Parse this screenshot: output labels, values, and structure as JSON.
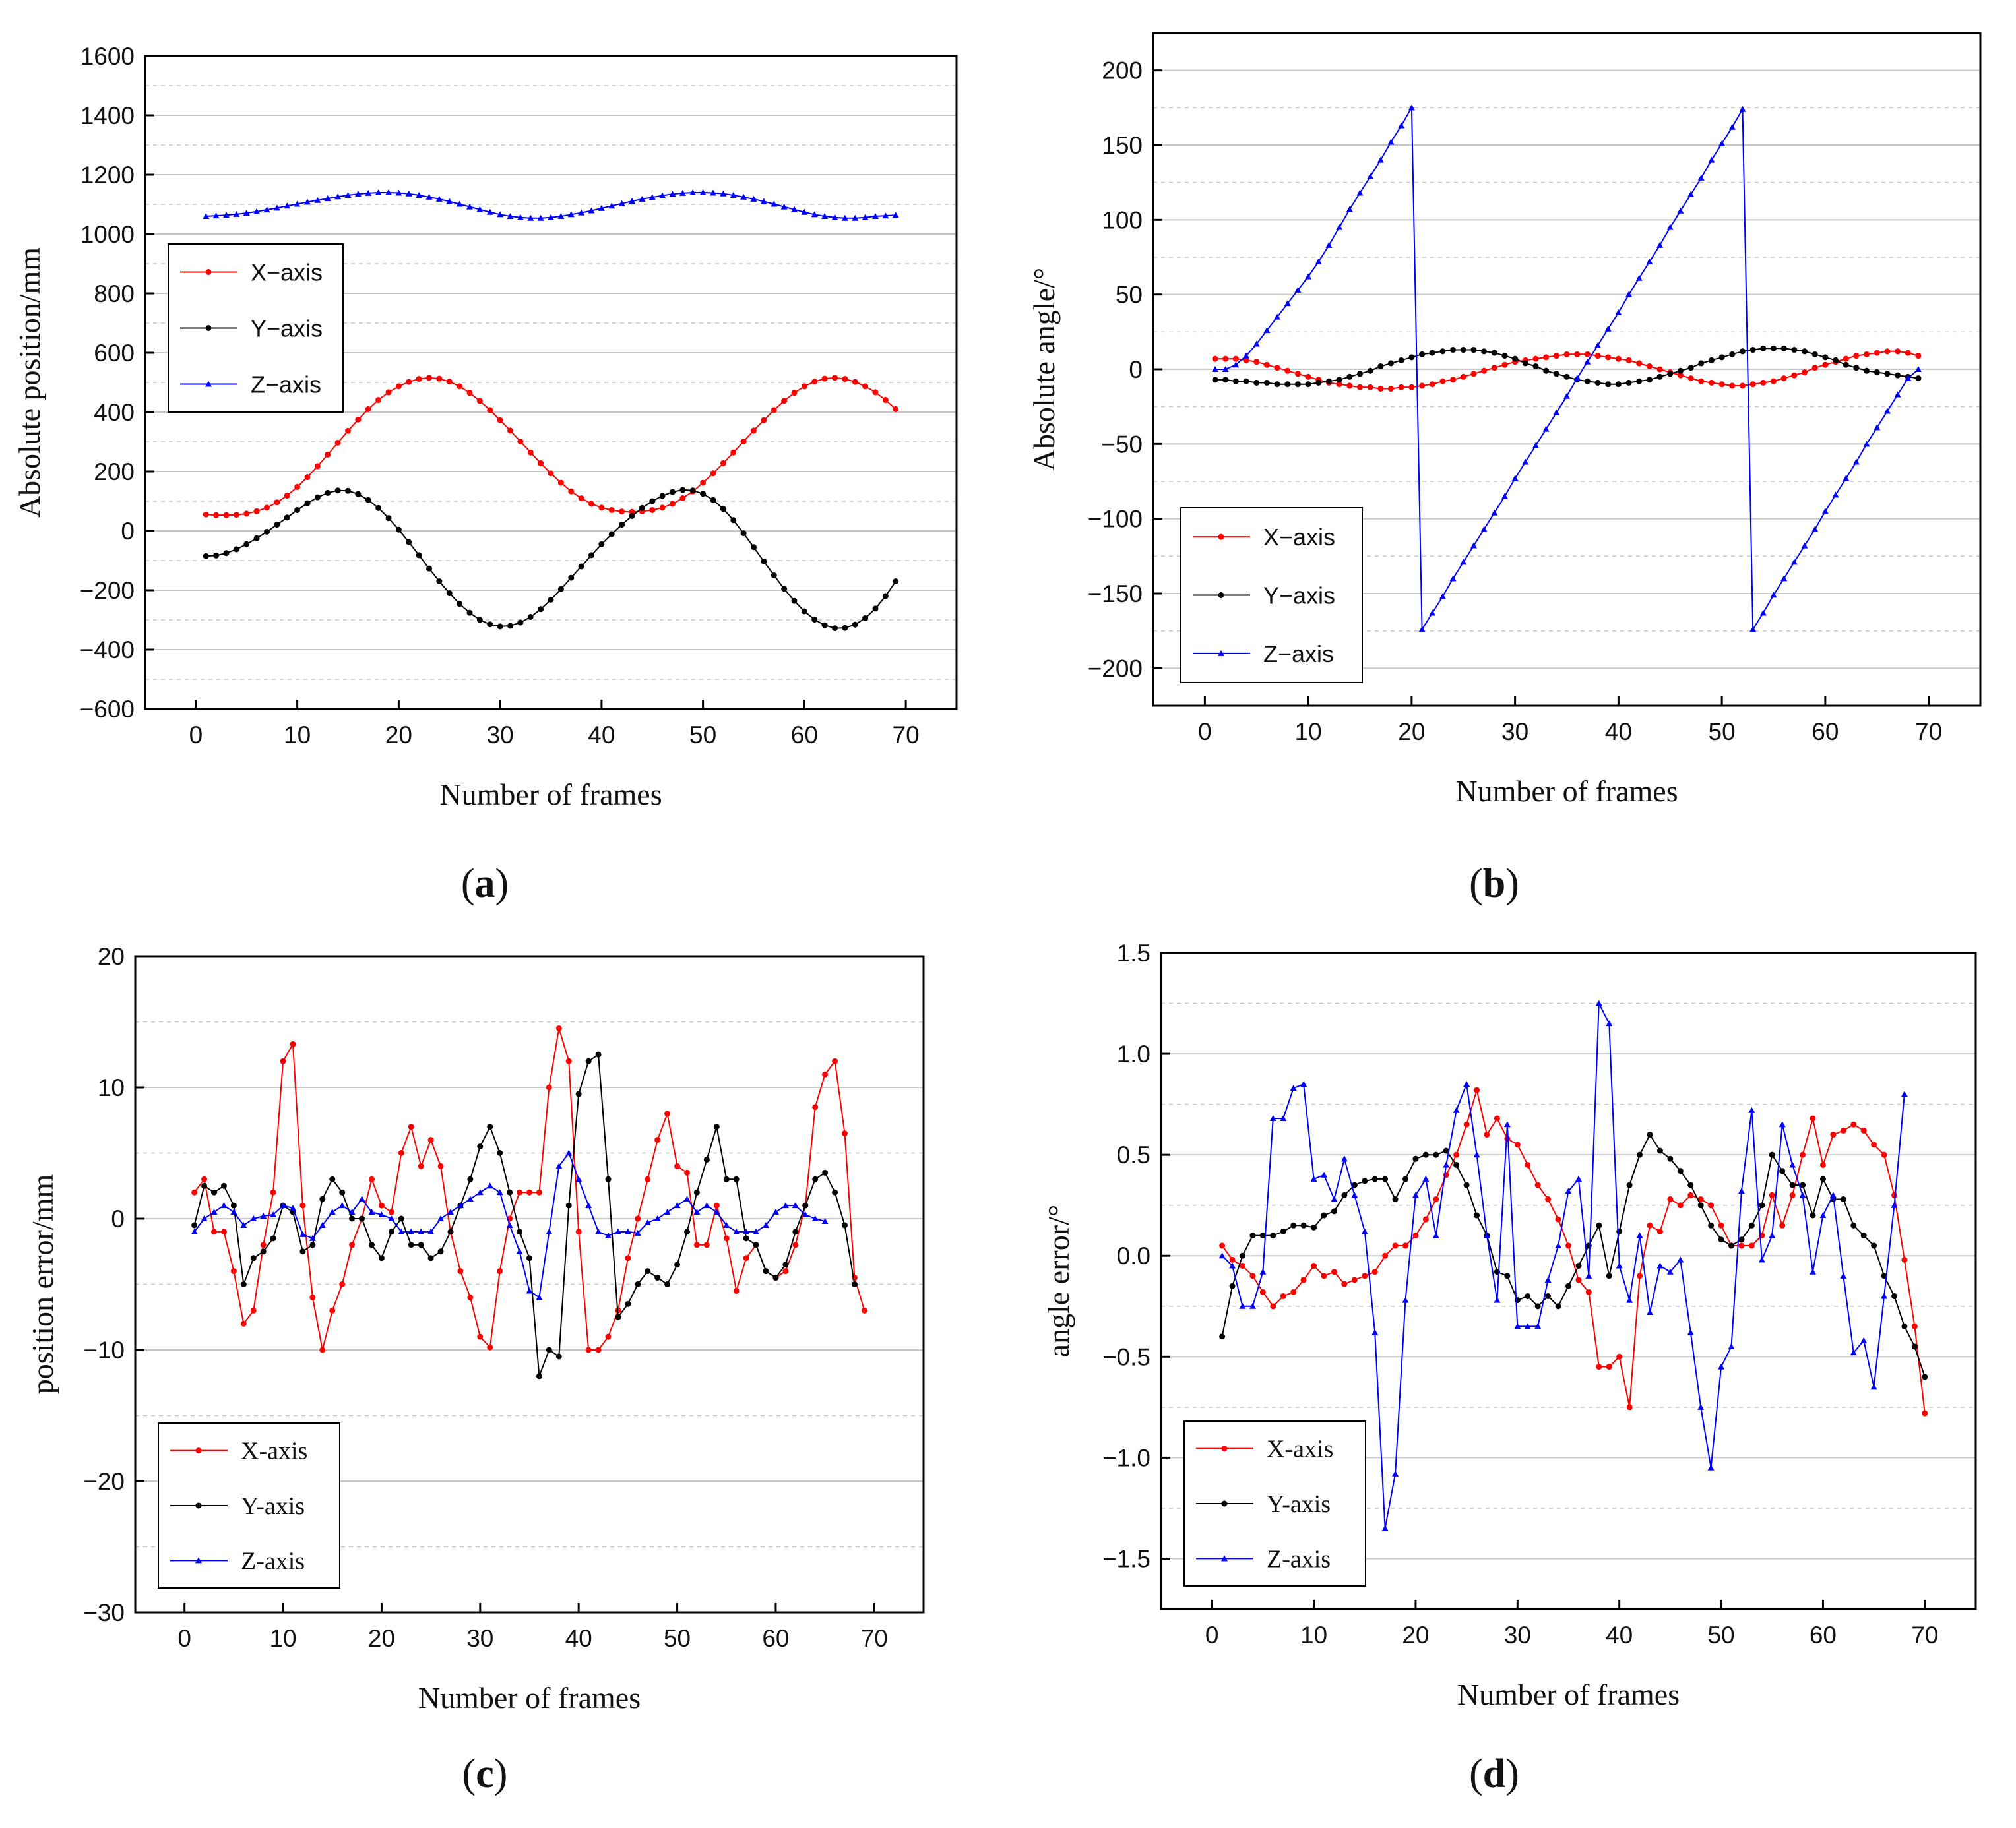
{
  "colors": {
    "x": "#ff0000",
    "y": "#000000",
    "z": "#0000ff",
    "grid": "#c8c8c8"
  },
  "chart_data": [
    {
      "id": "a",
      "type": "line",
      "caption_letter": "a",
      "xlabel": "Number of frames",
      "ylabel": "Absolute position/mm",
      "xlim": [
        -5,
        75
      ],
      "ylim": [
        -600,
        1600
      ],
      "xticks": [
        "0",
        "10",
        "20",
        "30",
        "40",
        "50",
        "60",
        "70"
      ],
      "yticks": [
        "−600",
        "−400",
        "−200",
        "0",
        "200",
        "400",
        "600",
        "800",
        "1000",
        "1200",
        "1400",
        "1600"
      ],
      "ytick_values": [
        -600,
        -400,
        -200,
        0,
        200,
        400,
        600,
        800,
        1000,
        1200,
        1400,
        1600
      ],
      "legend": [
        "X−axis",
        "Y−axis",
        "Z−axis"
      ],
      "legend_position": "middle-left",
      "series": [
        {
          "name": "X-axis",
          "key": "x",
          "values": [
            55,
            53,
            53,
            54,
            58,
            66,
            78,
            96,
            119,
            148,
            181,
            218,
            257,
            297,
            337,
            375,
            410,
            441,
            467,
            487,
            502,
            512,
            516,
            513,
            503,
            487,
            465,
            438,
            407,
            373,
            338,
            301,
            264,
            228,
            194,
            162,
            133,
            110,
            91,
            78,
            70,
            65,
            64,
            66,
            70,
            78,
            91,
            110,
            133,
            162,
            194,
            228,
            264,
            301,
            338,
            373,
            407,
            438,
            465,
            487,
            503,
            513,
            516,
            512,
            502,
            487,
            467,
            441,
            410
          ]
        },
        {
          "name": "Y-axis",
          "key": "y",
          "values": [
            -85,
            -83,
            -75,
            -62,
            -45,
            -25,
            -3,
            21,
            45,
            70,
            93,
            113,
            128,
            136,
            135,
            124,
            104,
            77,
            43,
            4,
            -38,
            -82,
            -127,
            -170,
            -210,
            -246,
            -276,
            -300,
            -315,
            -322,
            -320,
            -309,
            -290,
            -264,
            -232,
            -196,
            -158,
            -120,
            -82,
            -45,
            -11,
            21,
            50,
            77,
            100,
            118,
            131,
            138,
            136,
            125,
            104,
            74,
            36,
            -8,
            -55,
            -103,
            -150,
            -195,
            -236,
            -271,
            -299,
            -318,
            -328,
            -327,
            -316,
            -294,
            -262,
            -220,
            -170
          ]
        },
        {
          "name": "Z-axis",
          "key": "z",
          "values": [
            1060,
            1062,
            1064,
            1067,
            1071,
            1076,
            1082,
            1088,
            1095,
            1101,
            1108,
            1114,
            1120,
            1126,
            1131,
            1135,
            1138,
            1140,
            1140,
            1139,
            1136,
            1131,
            1125,
            1118,
            1110,
            1101,
            1092,
            1083,
            1074,
            1066,
            1060,
            1056,
            1054,
            1054,
            1056,
            1060,
            1066,
            1072,
            1079,
            1087,
            1095,
            1103,
            1111,
            1118,
            1124,
            1130,
            1135,
            1138,
            1140,
            1140,
            1139,
            1136,
            1131,
            1125,
            1118,
            1110,
            1101,
            1092,
            1083,
            1074,
            1066,
            1060,
            1056,
            1054,
            1054,
            1056,
            1060,
            1062,
            1064
          ]
        }
      ]
    },
    {
      "id": "b",
      "type": "line",
      "caption_letter": "b",
      "xlabel": "Number of frames",
      "ylabel": "Absolute angle/°",
      "xlim": [
        -5,
        75
      ],
      "ylim": [
        -225,
        225
      ],
      "xticks": [
        "0",
        "10",
        "20",
        "30",
        "40",
        "50",
        "60",
        "70"
      ],
      "yticks": [
        "−200",
        "−150",
        "−100",
        "−50",
        "0",
        "50",
        "100",
        "150",
        "200"
      ],
      "ytick_values": [
        -200,
        -150,
        -100,
        -50,
        0,
        50,
        100,
        150,
        200
      ],
      "legend": [
        "X−axis",
        "Y−axis",
        "Z−axis"
      ],
      "legend_position": "lower-left",
      "series": [
        {
          "name": "X-axis",
          "key": "x",
          "values": [
            7,
            7,
            7,
            6,
            5,
            3,
            1,
            -1,
            -3,
            -5,
            -7,
            -9,
            -10,
            -11,
            -12,
            -12,
            -13,
            -13,
            -12,
            -12,
            -11,
            -10,
            -8,
            -7,
            -5,
            -3,
            -1,
            1,
            3,
            5,
            6,
            7,
            8,
            9,
            10,
            10,
            10,
            9,
            8,
            7,
            6,
            4,
            2,
            0,
            -2,
            -4,
            -6,
            -8,
            -9,
            -10,
            -11,
            -11,
            -10,
            -9,
            -8,
            -6,
            -4,
            -2,
            1,
            3,
            5,
            7,
            9,
            10,
            11,
            12,
            12,
            11,
            9
          ]
        },
        {
          "name": "Y-axis",
          "key": "y",
          "values": [
            -7,
            -7,
            -8,
            -8,
            -9,
            -9,
            -10,
            -10,
            -10,
            -10,
            -9,
            -8,
            -7,
            -5,
            -3,
            -1,
            2,
            4,
            6,
            8,
            10,
            11,
            12,
            13,
            13,
            13,
            12,
            11,
            9,
            7,
            4,
            2,
            -1,
            -3,
            -5,
            -7,
            -8,
            -9,
            -10,
            -10,
            -9,
            -8,
            -7,
            -5,
            -3,
            -1,
            1,
            4,
            6,
            8,
            10,
            12,
            13,
            14,
            14,
            14,
            13,
            12,
            10,
            8,
            6,
            3,
            1,
            -1,
            -2,
            -3,
            -4,
            -5,
            -6
          ]
        },
        {
          "name": "Z-axis",
          "key": "z",
          "values": [
            0,
            0,
            3,
            9,
            17,
            26,
            35,
            44,
            53,
            62,
            72,
            83,
            95,
            107,
            118,
            129,
            140,
            152,
            163,
            175,
            -174,
            -163,
            -152,
            -140,
            -129,
            -118,
            -107,
            -96,
            -85,
            -73,
            -62,
            -51,
            -40,
            -29,
            -18,
            -6,
            5,
            16,
            27,
            38,
            50,
            61,
            72,
            83,
            95,
            106,
            117,
            128,
            140,
            151,
            162,
            174,
            -174,
            -163,
            -151,
            -140,
            -129,
            -118,
            -107,
            -95,
            -84,
            -73,
            -62,
            -50,
            -39,
            -28,
            -17,
            -6,
            0
          ]
        }
      ]
    },
    {
      "id": "c",
      "type": "line",
      "caption_letter": "c",
      "xlabel": "Number of frames",
      "ylabel": "position error/mm",
      "xlim": [
        -5,
        75
      ],
      "ylim": [
        -30,
        20
      ],
      "xticks": [
        "0",
        "10",
        "20",
        "30",
        "40",
        "50",
        "60",
        "70"
      ],
      "yticks": [
        "−30",
        "−20",
        "−10",
        "0",
        "10",
        "20"
      ],
      "ytick_values": [
        -30,
        -20,
        -10,
        0,
        10,
        20
      ],
      "legend": [
        "X-axis",
        "Y-axis",
        "Z-axis"
      ],
      "legend_position": "lower-left",
      "series": [
        {
          "name": "X-axis",
          "key": "x",
          "values": [
            2,
            3,
            -1,
            -1,
            -4,
            -8,
            -7,
            -2,
            2,
            12,
            13.3,
            1,
            -6,
            -10,
            -7,
            -5,
            -2,
            0,
            3,
            1,
            0.5,
            5,
            7,
            4,
            6,
            4,
            -1,
            -4,
            -6,
            -9,
            -9.8,
            -4,
            0,
            2,
            2,
            2,
            10,
            14.5,
            12,
            -1,
            -10,
            -10,
            -9,
            -7,
            -3,
            0,
            3,
            6,
            8,
            4,
            3.5,
            -2,
            -2,
            1,
            -1.5,
            -5.5,
            -3,
            -2,
            -4,
            -4.5,
            -4,
            -2,
            1,
            8.5,
            11,
            12,
            6.5,
            -4.5,
            -7
          ]
        },
        {
          "name": "Y-axis",
          "key": "y",
          "values": [
            -0.5,
            2.5,
            2,
            2.5,
            1,
            -5,
            -3,
            -2.5,
            -1.5,
            1,
            0.5,
            -2.5,
            -2,
            1.5,
            3,
            2,
            0,
            0,
            -2,
            -3,
            -1,
            0,
            -2,
            -2,
            -3,
            -2.5,
            -1,
            1,
            3,
            5.5,
            7,
            5,
            2,
            -1,
            -3,
            -12,
            -10,
            -10.5,
            1,
            9.5,
            12,
            12.5,
            3,
            -7.5,
            -6.5,
            -5,
            -4,
            -4.5,
            -5,
            -3.5,
            -1,
            2,
            4.5,
            7,
            3,
            3,
            -1.5,
            -2,
            -4,
            -4.5,
            -3.5,
            -1,
            1,
            3,
            3.5,
            2,
            -0.5,
            -5
          ]
        },
        {
          "name": "Z-axis",
          "key": "z",
          "values": [
            -1,
            0,
            0.5,
            1,
            0.5,
            -0.5,
            0,
            0.2,
            0.3,
            1,
            0.8,
            -1.2,
            -1.5,
            -0.5,
            0.5,
            1,
            0.5,
            1.5,
            0.5,
            0.3,
            0,
            -1,
            -1,
            -1,
            -1,
            0,
            0.5,
            1,
            1.5,
            2,
            2.5,
            2,
            -0.5,
            -2.5,
            -5.5,
            -6,
            -1,
            4,
            5,
            3,
            1,
            -1,
            -1.3,
            -1,
            -1,
            -1.1,
            -0.3,
            0,
            0.5,
            1,
            1.5,
            0.5,
            1,
            0.5,
            -0.5,
            -1,
            -1,
            -1,
            -0.5,
            0.5,
            1,
            1,
            0.3,
            0,
            -0.2
          ]
        }
      ]
    },
    {
      "id": "d",
      "type": "line",
      "caption_letter": "d",
      "xlabel": "Number of frames",
      "ylabel": "angle error/°",
      "xlim": [
        -5,
        75
      ],
      "ylim": [
        -1.75,
        1.5
      ],
      "xticks": [
        "0",
        "10",
        "20",
        "30",
        "40",
        "50",
        "60",
        "70"
      ],
      "yticks": [
        "−1.5",
        "−1.0",
        "−0.5",
        "0.0",
        "0.5",
        "1.0",
        "1.5"
      ],
      "ytick_values": [
        -1.5,
        -1.0,
        -0.5,
        0.0,
        0.5,
        1.0,
        1.5
      ],
      "legend": [
        "X-axis",
        "Y-axis",
        "Z-axis"
      ],
      "legend_position": "lower-left",
      "series": [
        {
          "name": "X-axis",
          "key": "x",
          "values": [
            0.05,
            -0.02,
            -0.05,
            -0.1,
            -0.18,
            -0.25,
            -0.2,
            -0.18,
            -0.12,
            -0.05,
            -0.1,
            -0.08,
            -0.14,
            -0.12,
            -0.1,
            -0.08,
            0,
            0.05,
            0.05,
            0.1,
            0.18,
            0.28,
            0.4,
            0.5,
            0.65,
            0.82,
            0.6,
            0.68,
            0.58,
            0.55,
            0.45,
            0.35,
            0.28,
            0.18,
            0.05,
            -0.12,
            -0.18,
            -0.55,
            -0.55,
            -0.5,
            -0.75,
            -0.1,
            0.15,
            0.12,
            0.28,
            0.25,
            0.3,
            0.28,
            0.25,
            0.15,
            0.05,
            0.05,
            0.05,
            0.1,
            0.3,
            0.15,
            0.3,
            0.5,
            0.68,
            0.45,
            0.6,
            0.62,
            0.65,
            0.62,
            0.55,
            0.5,
            0.3,
            -0.02,
            -0.35,
            -0.78
          ]
        },
        {
          "name": "Y-axis",
          "key": "y",
          "values": [
            -0.4,
            -0.15,
            0,
            0.1,
            0.1,
            0.1,
            0.12,
            0.15,
            0.15,
            0.14,
            0.2,
            0.22,
            0.3,
            0.35,
            0.37,
            0.38,
            0.38,
            0.28,
            0.38,
            0.48,
            0.5,
            0.5,
            0.52,
            0.45,
            0.35,
            0.2,
            0.1,
            -0.08,
            -0.1,
            -0.22,
            -0.2,
            -0.25,
            -0.2,
            -0.25,
            -0.15,
            -0.05,
            0.05,
            0.15,
            -0.1,
            0.12,
            0.35,
            0.5,
            0.6,
            0.52,
            0.48,
            0.42,
            0.35,
            0.25,
            0.15,
            0.08,
            0.05,
            0.08,
            0.15,
            0.25,
            0.5,
            0.42,
            0.35,
            0.35,
            0.2,
            0.38,
            0.28,
            0.28,
            0.15,
            0.1,
            0.05,
            -0.1,
            -0.2,
            -0.35,
            -0.45,
            -0.6
          ]
        },
        {
          "name": "Z-axis",
          "key": "z",
          "values": [
            0,
            -0.05,
            -0.25,
            -0.25,
            -0.08,
            0.68,
            0.68,
            0.83,
            0.85,
            0.38,
            0.4,
            0.28,
            0.48,
            0.3,
            0.12,
            -0.38,
            -1.35,
            -1.08,
            -0.22,
            0.3,
            0.38,
            0.1,
            0.45,
            0.72,
            0.85,
            0.5,
            0.1,
            -0.22,
            0.65,
            -0.35,
            -0.35,
            -0.35,
            -0.12,
            0.05,
            0.32,
            0.38,
            -0.1,
            1.25,
            1.15,
            -0.05,
            -0.22,
            0.1,
            -0.28,
            -0.05,
            -0.08,
            -0.02,
            -0.38,
            -0.75,
            -1.05,
            -0.55,
            -0.45,
            0.32,
            0.72,
            -0.02,
            0.1,
            0.65,
            0.45,
            0.3,
            -0.08,
            0.2,
            0.3,
            -0.1,
            -0.48,
            -0.42,
            -0.65,
            -0.2,
            0.25,
            0.8
          ]
        }
      ]
    }
  ]
}
